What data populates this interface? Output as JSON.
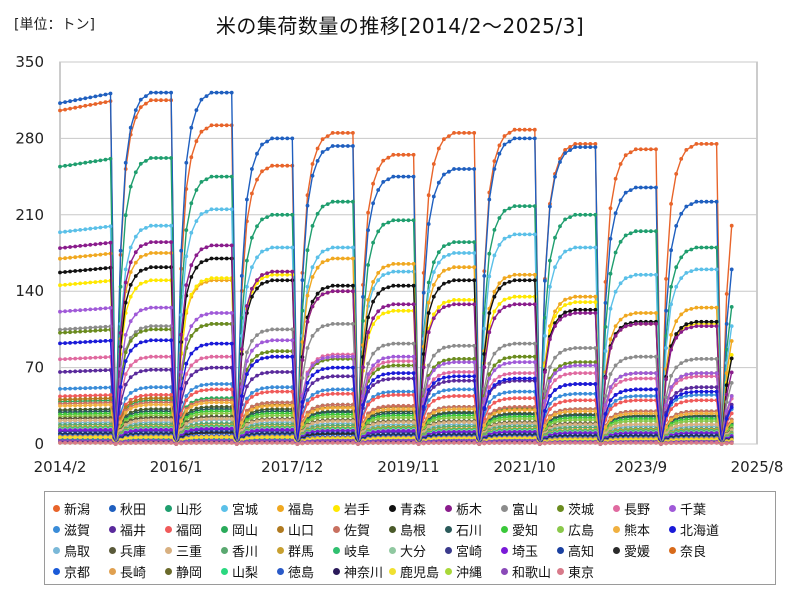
{
  "header": {
    "unit": "[単位：トン]",
    "title": "米の集荷数量の推移[2014/2～2025/3]"
  },
  "chart_data": {
    "type": "line",
    "ylim": [
      0,
      350
    ],
    "yticks": [
      0,
      70,
      140,
      210,
      280,
      350
    ],
    "xlim": [
      "2014/2",
      "2025/8"
    ],
    "xticks": [
      "2014/2",
      "2016/1",
      "2017/12",
      "2019/11",
      "2021/10",
      "2023/9",
      "2025/8"
    ],
    "grid": "horizontal",
    "legend_position": "bottom",
    "season_start_months": [
      11,
      12,
      13,
      14,
      15,
      16,
      17,
      18,
      19,
      20,
      21
    ],
    "last_month": 133,
    "series": [
      {
        "name": "新潟",
        "color": "#e8642a",
        "peaks": [
          315,
          292,
          255,
          285,
          265,
          285,
          288,
          275,
          270,
          275,
          250
        ]
      },
      {
        "name": "秋田",
        "color": "#1f5fbf",
        "peaks": [
          322,
          322,
          280,
          273,
          245,
          252,
          280,
          272,
          235,
          222,
          200
        ]
      },
      {
        "name": "山形",
        "color": "#1f9e6e",
        "peaks": [
          262,
          245,
          210,
          222,
          205,
          185,
          218,
          210,
          195,
          180,
          157
        ]
      },
      {
        "name": "宮城",
        "color": "#5bc0e8",
        "peaks": [
          200,
          215,
          180,
          180,
          158,
          175,
          192,
          180,
          155,
          160,
          135
        ]
      },
      {
        "name": "福島",
        "color": "#f0a820",
        "peaks": [
          175,
          150,
          158,
          170,
          165,
          162,
          155,
          135,
          120,
          125,
          118
        ]
      },
      {
        "name": "岩手",
        "color": "#ffe800",
        "peaks": [
          150,
          152,
          155,
          140,
          122,
          132,
          135,
          130,
          110,
          110,
          102
        ]
      },
      {
        "name": "青森",
        "color": "#111111",
        "peaks": [
          162,
          170,
          150,
          145,
          145,
          150,
          150,
          123,
          112,
          112,
          98
        ]
      },
      {
        "name": "栃木",
        "color": "#8a1c8c",
        "peaks": [
          185,
          182,
          158,
          140,
          128,
          128,
          128,
          120,
          110,
          108,
          82
        ]
      },
      {
        "name": "富山",
        "color": "#8c8c8c",
        "peaks": [
          108,
          110,
          105,
          110,
          92,
          90,
          92,
          88,
          80,
          78,
          70
        ]
      },
      {
        "name": "茨城",
        "color": "#6b8c1f",
        "peaks": [
          105,
          110,
          85,
          78,
          72,
          78,
          80,
          75,
          65,
          65,
          55
        ]
      },
      {
        "name": "長野",
        "color": "#e06aa0",
        "peaks": [
          80,
          80,
          80,
          82,
          76,
          66,
          65,
          65,
          60,
          62,
          52
        ]
      },
      {
        "name": "千葉",
        "color": "#a05ad8",
        "peaks": [
          125,
          120,
          95,
          80,
          80,
          75,
          75,
          72,
          65,
          65,
          55
        ]
      },
      {
        "name": "滋賀",
        "color": "#3a8cd8",
        "peaks": [
          52,
          55,
          52,
          50,
          48,
          50,
          48,
          46,
          44,
          45,
          40
        ]
      },
      {
        "name": "福井",
        "color": "#5a2a9c",
        "peaks": [
          68,
          70,
          66,
          62,
          60,
          58,
          58,
          55,
          50,
          52,
          45
        ]
      },
      {
        "name": "福岡",
        "color": "#f05a5a",
        "peaks": [
          45,
          50,
          48,
          46,
          45,
          44,
          42,
          40,
          40,
          40,
          35
        ]
      },
      {
        "name": "岡山",
        "color": "#2aaa5a",
        "peaks": [
          40,
          42,
          38,
          36,
          34,
          34,
          33,
          32,
          30,
          30,
          28
        ]
      },
      {
        "name": "山口",
        "color": "#b07a20",
        "peaks": [
          42,
          40,
          36,
          34,
          34,
          32,
          32,
          30,
          28,
          28,
          26
        ]
      },
      {
        "name": "佐賀",
        "color": "#c87060",
        "peaks": [
          38,
          40,
          38,
          36,
          35,
          34,
          34,
          32,
          30,
          30,
          28
        ]
      },
      {
        "name": "島根",
        "color": "#4a5a2a",
        "peaks": [
          32,
          34,
          32,
          30,
          30,
          29,
          28,
          27,
          26,
          26,
          24
        ]
      },
      {
        "name": "石川",
        "color": "#2a5a5a",
        "peaks": [
          30,
          32,
          30,
          29,
          28,
          28,
          27,
          26,
          25,
          25,
          22
        ]
      },
      {
        "name": "愛知",
        "color": "#3ac83a",
        "peaks": [
          28,
          30,
          28,
          27,
          26,
          26,
          25,
          24,
          23,
          23,
          21
        ]
      },
      {
        "name": "広島",
        "color": "#8ac84a",
        "peaks": [
          26,
          28,
          26,
          25,
          24,
          24,
          23,
          22,
          21,
          21,
          19
        ]
      },
      {
        "name": "熊本",
        "color": "#f0b040",
        "peaks": [
          36,
          38,
          35,
          33,
          32,
          32,
          31,
          30,
          28,
          28,
          26
        ]
      },
      {
        "name": "北海道",
        "color": "#1a1ad8",
        "peaks": [
          95,
          92,
          80,
          70,
          65,
          62,
          60,
          55,
          50,
          48,
          42
        ]
      },
      {
        "name": "鳥取",
        "color": "#7ab8d8",
        "peaks": [
          20,
          22,
          20,
          19,
          18,
          18,
          18,
          17,
          16,
          16,
          15
        ]
      },
      {
        "name": "兵庫",
        "color": "#5a5a3a",
        "peaks": [
          24,
          25,
          23,
          22,
          21,
          21,
          20,
          19,
          18,
          18,
          17
        ]
      },
      {
        "name": "三重",
        "color": "#d8b080",
        "peaks": [
          22,
          23,
          22,
          21,
          20,
          20,
          19,
          18,
          18,
          18,
          16
        ]
      },
      {
        "name": "香川",
        "color": "#5aa870",
        "peaks": [
          18,
          19,
          18,
          17,
          16,
          16,
          16,
          15,
          14,
          14,
          13
        ]
      },
      {
        "name": "群馬",
        "color": "#c8a030",
        "peaks": [
          16,
          17,
          16,
          15,
          15,
          14,
          14,
          13,
          13,
          13,
          12
        ]
      },
      {
        "name": "岐阜",
        "color": "#30c070",
        "peaks": [
          15,
          16,
          15,
          14,
          14,
          13,
          13,
          12,
          12,
          12,
          11
        ]
      },
      {
        "name": "大分",
        "color": "#90c8a0",
        "peaks": [
          14,
          15,
          14,
          13,
          13,
          12,
          12,
          11,
          11,
          11,
          10
        ]
      },
      {
        "name": "宮崎",
        "color": "#3a3a8c",
        "peaks": [
          12,
          13,
          12,
          12,
          11,
          11,
          11,
          10,
          10,
          10,
          9
        ]
      },
      {
        "name": "埼玉",
        "color": "#7a1ad8",
        "peaks": [
          13,
          14,
          13,
          12,
          12,
          11,
          11,
          10,
          10,
          10,
          9
        ]
      },
      {
        "name": "高知",
        "color": "#1a40a0",
        "peaks": [
          10,
          11,
          10,
          10,
          9,
          9,
          9,
          8,
          8,
          8,
          7
        ]
      },
      {
        "name": "愛媛",
        "color": "#2a2a2a",
        "peaks": [
          9,
          10,
          9,
          9,
          8,
          8,
          8,
          7,
          7,
          7,
          6
        ]
      },
      {
        "name": "奈良",
        "color": "#d86a1a",
        "peaks": [
          6,
          6,
          6,
          6,
          5,
          5,
          5,
          5,
          5,
          5,
          4
        ]
      },
      {
        "name": "京都",
        "color": "#1a5ad8",
        "peaks": [
          8,
          8,
          8,
          7,
          7,
          7,
          7,
          6,
          6,
          6,
          5
        ]
      },
      {
        "name": "長崎",
        "color": "#e0a050",
        "peaks": [
          7,
          7,
          7,
          6,
          6,
          6,
          6,
          5,
          5,
          5,
          5
        ]
      },
      {
        "name": "静岡",
        "color": "#6a6a2a",
        "peaks": [
          5,
          5,
          5,
          5,
          4,
          4,
          4,
          4,
          4,
          4,
          3
        ]
      },
      {
        "name": "山梨",
        "color": "#2ad880",
        "peaks": [
          4,
          4,
          4,
          4,
          3,
          3,
          3,
          3,
          3,
          3,
          3
        ]
      },
      {
        "name": "徳島",
        "color": "#2a5ac8",
        "peaks": [
          5,
          5,
          5,
          4,
          4,
          4,
          4,
          4,
          3,
          3,
          3
        ]
      },
      {
        "name": "神奈川",
        "color": "#2a1a5a",
        "peaks": [
          2,
          2,
          2,
          2,
          2,
          2,
          2,
          2,
          2,
          2,
          2
        ]
      },
      {
        "name": "鹿児島",
        "color": "#f0e030",
        "peaks": [
          6,
          6,
          6,
          5,
          5,
          5,
          5,
          4,
          4,
          4,
          4
        ]
      },
      {
        "name": "沖縄",
        "color": "#a8d838",
        "peaks": [
          1,
          1,
          1,
          1,
          1,
          1,
          1,
          1,
          1,
          1,
          1
        ]
      },
      {
        "name": "和歌山",
        "color": "#8a4ab8",
        "peaks": [
          3,
          3,
          3,
          3,
          3,
          3,
          3,
          2,
          2,
          2,
          2
        ]
      },
      {
        "name": "東京",
        "color": "#d87a8a",
        "peaks": [
          1,
          1,
          1,
          1,
          1,
          1,
          1,
          1,
          1,
          1,
          1
        ]
      }
    ]
  }
}
